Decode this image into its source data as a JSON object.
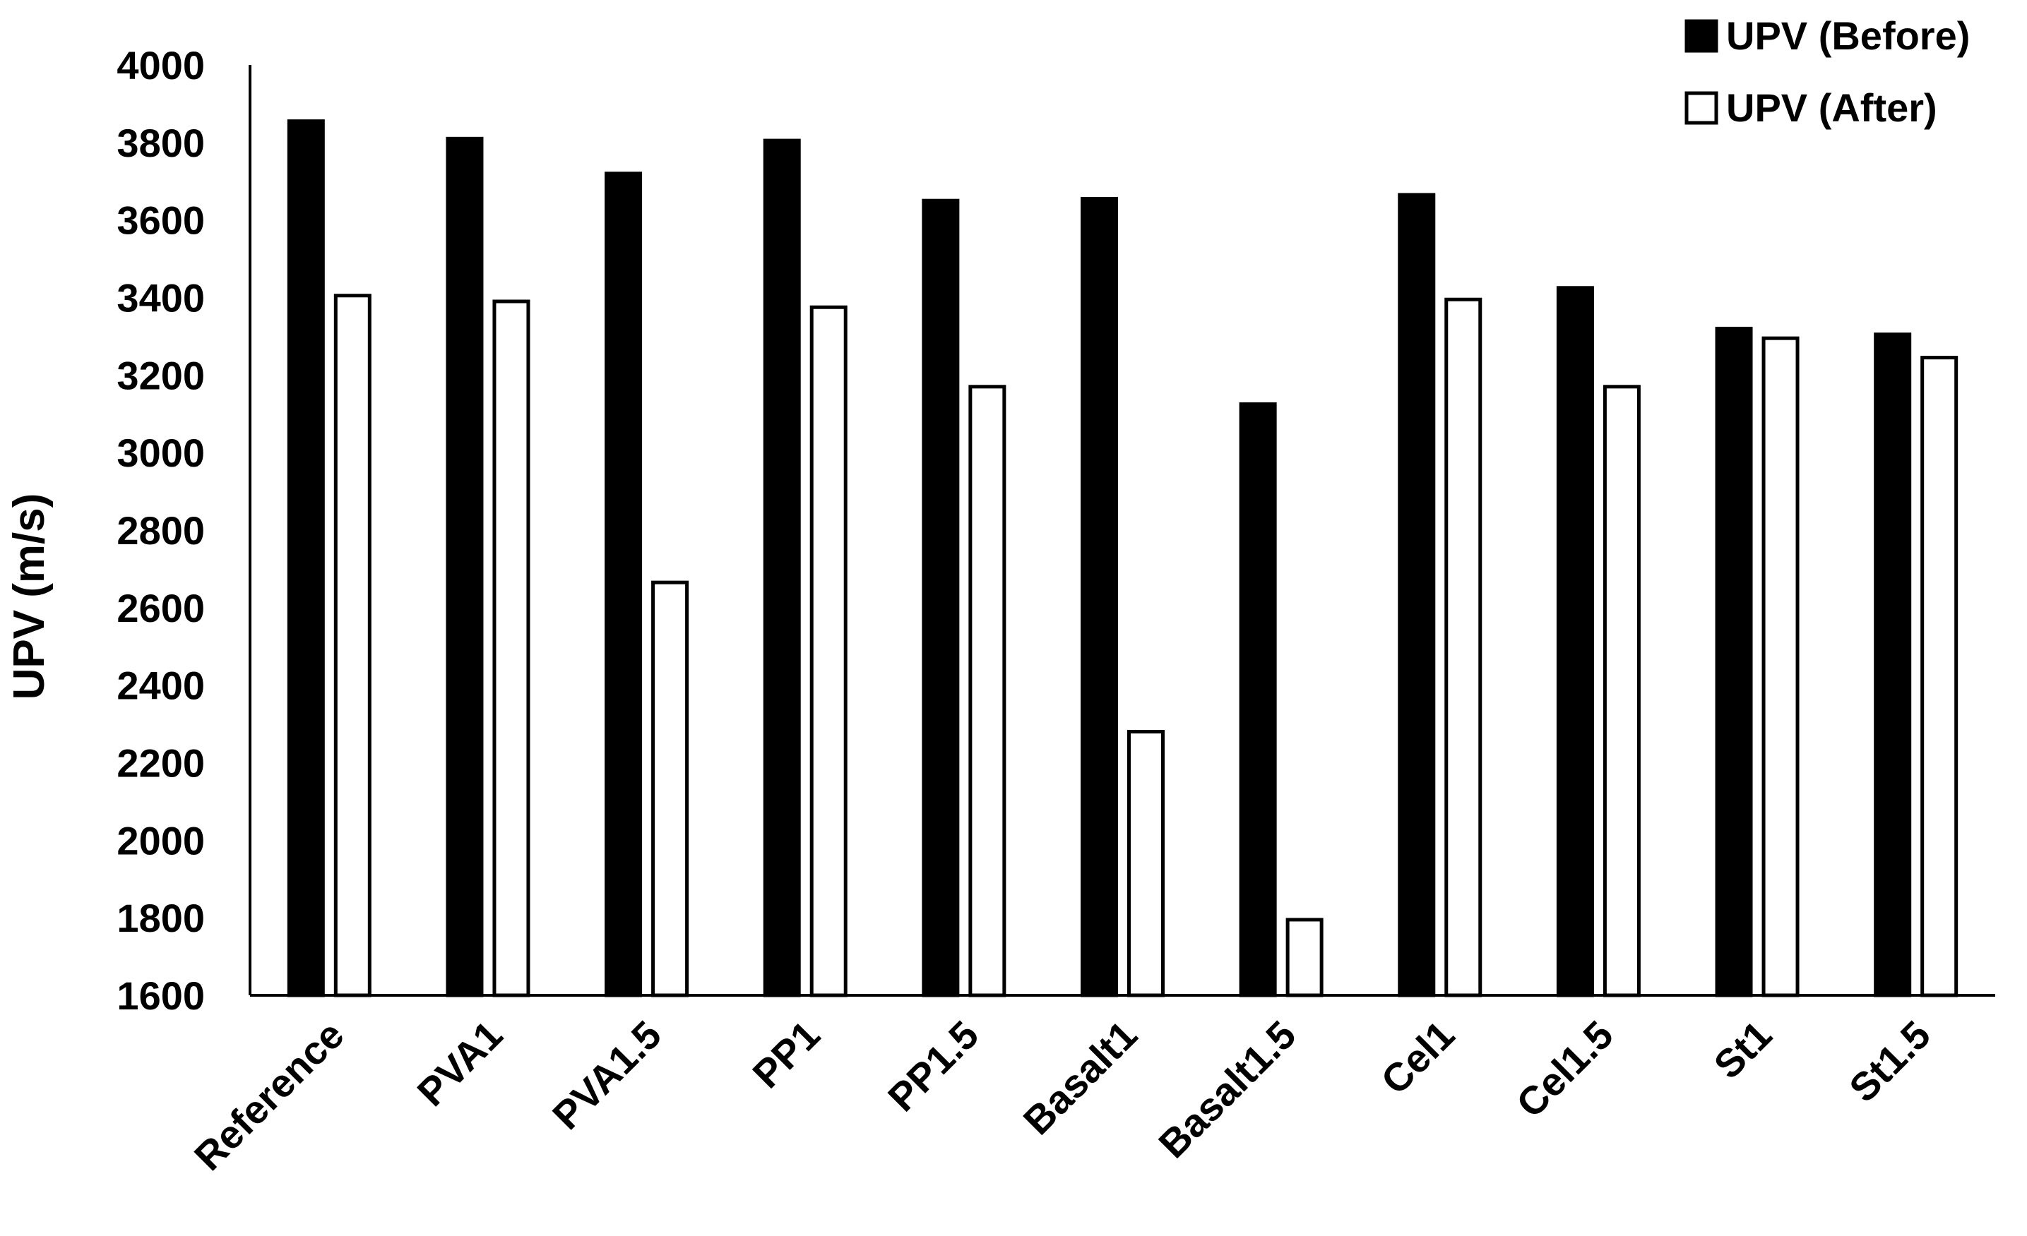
{
  "chart_data": {
    "type": "bar",
    "title": "",
    "xlabel": "",
    "ylabel": "UPV (m/s)",
    "ylim": [
      1600,
      4000
    ],
    "yticks": [
      1600,
      1800,
      2000,
      2200,
      2400,
      2600,
      2800,
      3000,
      3200,
      3400,
      3600,
      3800,
      4000
    ],
    "grid": false,
    "legend_position": "top-right",
    "categories": [
      "Reference",
      "PVA1",
      "PVA1.5",
      "PP1",
      "PP1.5",
      "Basalt1",
      "Basalt1.5",
      "Cel1",
      "Cel1.5",
      "St1",
      "St1.5"
    ],
    "series": [
      {
        "name": "UPV (Before)",
        "fill": "#000000",
        "stroke": "#000000",
        "values": [
          3855,
          3810,
          3720,
          3805,
          3650,
          3655,
          3125,
          3665,
          3425,
          3320,
          3305
        ]
      },
      {
        "name": "UPV (After)",
        "fill": "#ffffff",
        "stroke": "#000000",
        "values": [
          3405,
          3390,
          2665,
          3375,
          3170,
          2280,
          1795,
          3395,
          3170,
          3295,
          3245
        ]
      }
    ]
  }
}
